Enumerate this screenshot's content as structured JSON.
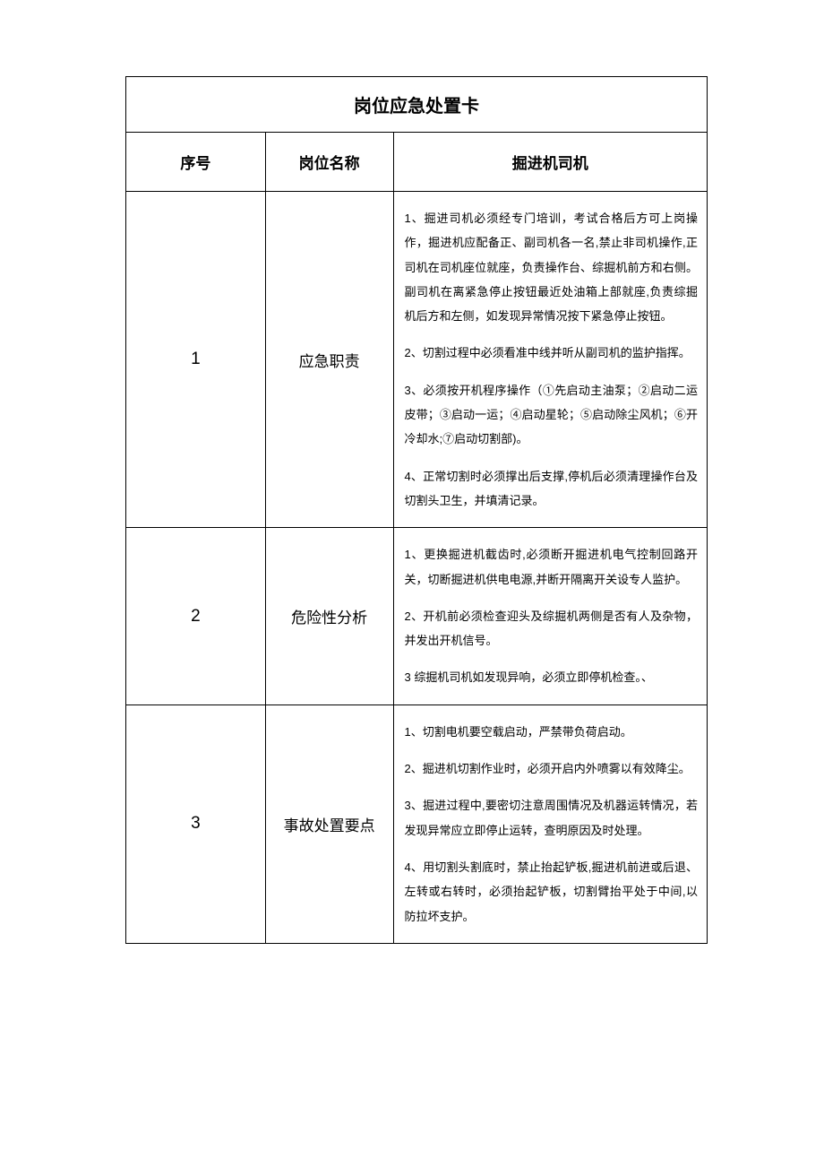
{
  "table": {
    "title": "岗位应急处置卡",
    "headers": {
      "col1": "序号",
      "col2": "岗位名称",
      "col3": "掘进机司机"
    },
    "rows": [
      {
        "number": "1",
        "label": "应急职责",
        "paragraphs": [
          "1、掘进司机必须经专门培训，考试合格后方可上岗操作，掘进机应配备正、副司机各一名,禁止非司机操作,正司机在司机座位就座，负责操作台、综掘机前方和右侧。副司机在离紧急停止按钮最近处油箱上部就座,负责综掘机后方和左侧，如发现异常情况按下紧急停止按钮。",
          "2、切割过程中必须看准中线并听从副司机的监护指挥。",
          "3、必须按开机程序操作（①先启动主油泵；②启动二运皮带；③启动一运；④启动星轮；⑤启动除尘风机；⑥开冷却水;⑦启动切割部)。",
          "4、正常切割时必须撑出后支撑,停机后必须清理操作台及切割头卫生，并填清记录。"
        ]
      },
      {
        "number": "2",
        "label": "危险性分析",
        "paragraphs": [
          "1、更换掘进机截齿时,必须断开掘进机电气控制回路开关，切断掘进机供电电源,并断开隔离开关设专人监护。",
          "2、开机前必须检查迎头及综掘机两侧是否有人及杂物，并发出开机信号。",
          "3 综掘机司机如发现异响，必须立即停机检查。、"
        ]
      },
      {
        "number": "3",
        "label": "事故处置要点",
        "paragraphs": [
          "1、切割电机要空载启动，严禁带负荷启动。",
          "2、掘进机切割作业时，必须开启内外喷雾以有效降尘。",
          "3、掘进过程中,要密切注意周围情况及机器运转情况，若发现异常应立即停止运转，查明原因及时处理。",
          "4、用切割头割底时，禁止抬起铲板,掘进机前进或后退、左转或右转时，必须抬起铲板，切割臂抬平处于中间,以防拉坏支护。"
        ]
      }
    ]
  }
}
